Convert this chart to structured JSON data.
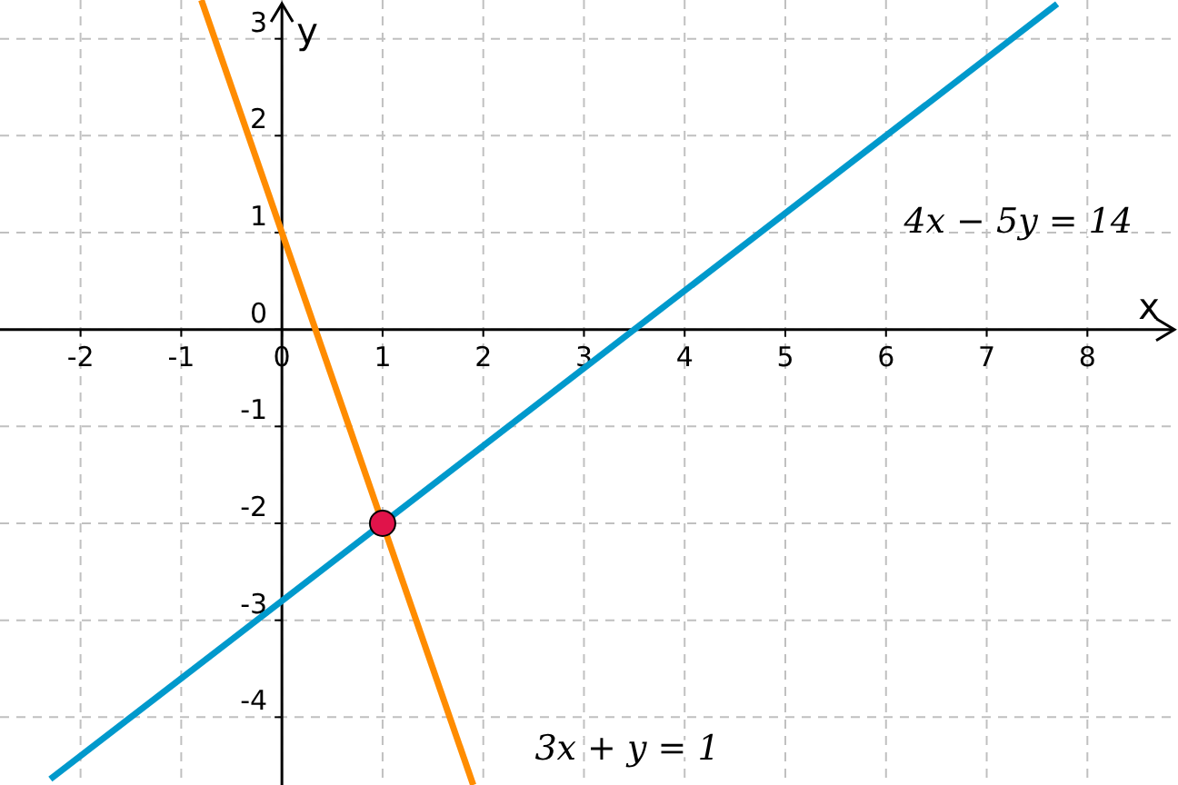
{
  "chart_data": {
    "type": "line",
    "xlabel": "x",
    "ylabel": "y",
    "xlim": [
      -2.8,
      8.9
    ],
    "ylim": [
      -4.7,
      3.4
    ],
    "xticks": [
      -2,
      -1,
      0,
      1,
      2,
      3,
      4,
      5,
      6,
      7,
      8
    ],
    "yticks": [
      -4,
      -3,
      -2,
      -1,
      0,
      1,
      2,
      3
    ],
    "grid": true,
    "series": [
      {
        "color": "#ff8c00",
        "x": [
          -0.8,
          1.9
        ],
        "values": [
          3.4,
          -4.7
        ]
      },
      {
        "color": "#0099cc",
        "x": [
          -2.3,
          7.7
        ],
        "values": [
          -4.64,
          3.36
        ]
      },
      {
        "type": "scatter",
        "color": "#e0134a",
        "marker": "circle",
        "x": [
          1
        ],
        "values": [
          -2
        ]
      }
    ],
    "annotations": [
      "4x − 5y = 14",
      "3x + y = 1"
    ]
  }
}
